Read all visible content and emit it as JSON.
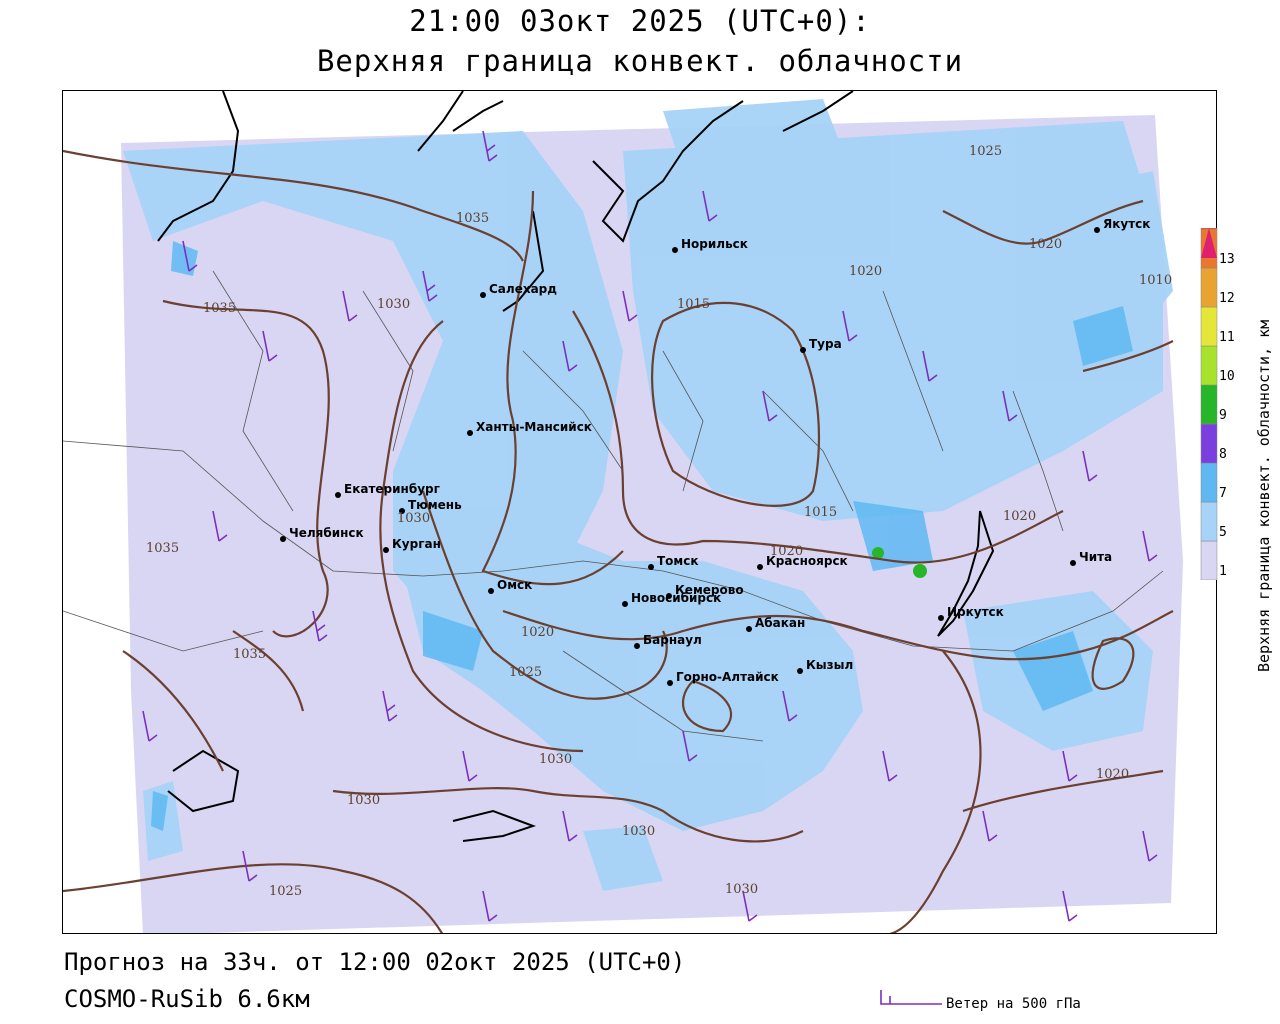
{
  "title": {
    "line1": "21:00 03окт 2025 (UTC+0):",
    "line2": "Верхняя граница конвект. облачности"
  },
  "footer": {
    "forecast": "Прогноз на 33ч. от 12:00 02окт 2025 (UTC+0)",
    "model": "COSMO-RuSib 6.6км"
  },
  "legend": {
    "title": "Верхняя граница конвект. облачности, км",
    "ticks": [
      "1",
      "5",
      "7",
      "8",
      "9",
      "10",
      "11",
      "12",
      "13"
    ],
    "colors": [
      "#d9d6f3",
      "#a6d3f7",
      "#5fb8f2",
      "#7b3fe0",
      "#27b52a",
      "#a6e22e",
      "#e5e53a",
      "#e8a330",
      "#e87830",
      "#f04a2c",
      "#e0206e"
    ]
  },
  "wind_legend": {
    "label": "Ветер на 500 гПа",
    "color": "#7b2fbf"
  },
  "cities": [
    {
      "name": "Якутск"
    },
    {
      "name": "Норильск"
    },
    {
      "name": "Салехард"
    },
    {
      "name": "Тура"
    },
    {
      "name": "Ханты-Мансийск"
    },
    {
      "name": "Екатеринбург"
    },
    {
      "name": "Тюмень"
    },
    {
      "name": "Челябинск"
    },
    {
      "name": "Курган"
    },
    {
      "name": "Омск"
    },
    {
      "name": "Томск"
    },
    {
      "name": "Новосибирск"
    },
    {
      "name": "Кемерово"
    },
    {
      "name": "Красноярск"
    },
    {
      "name": "Абакан"
    },
    {
      "name": "Барнаул"
    },
    {
      "name": "Горно-Алтайск"
    },
    {
      "name": "Кызыл"
    },
    {
      "name": "Иркутск"
    },
    {
      "name": "Чита"
    }
  ],
  "isobars": [
    "1025",
    "1035",
    "1035",
    "1030",
    "1015",
    "1020",
    "1020",
    "1010",
    "1030",
    "1015",
    "1020",
    "1020",
    "1035",
    "1035",
    "1020",
    "1025",
    "1030",
    "1030",
    "1030",
    "1025",
    "1030",
    "1020"
  ]
}
